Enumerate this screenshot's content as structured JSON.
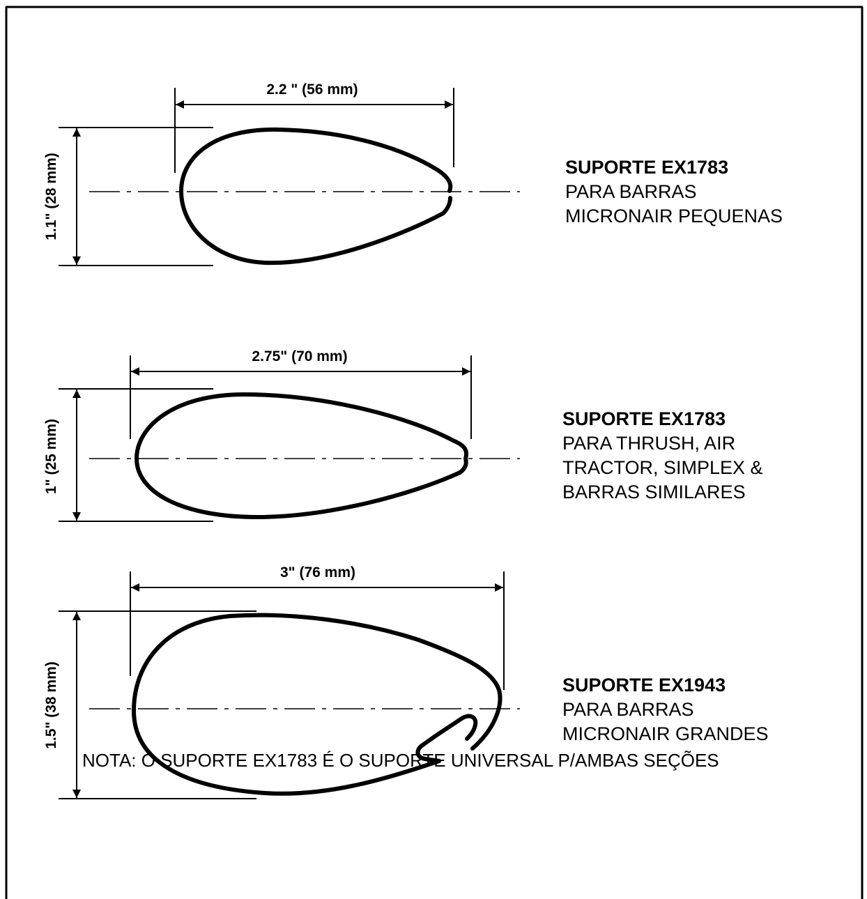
{
  "sections": [
    {
      "width_label": "2.2 \" (56 mm)",
      "height_label": "1.1\" (28 mm)",
      "title": "SUPORTE EX1783",
      "lines": [
        "PARA BARRAS",
        "MICRONAIR PEQUENAS"
      ]
    },
    {
      "width_label": "2.75\" (70 mm)",
      "height_label": "1\" (25 mm)",
      "title": "SUPORTE EX1783",
      "lines": [
        "PARA THRUSH, AIR",
        "TRACTOR,  SIMPLEX  &",
        "BARRAS SIMILARES"
      ]
    },
    {
      "width_label": "3\" (76 mm)",
      "height_label": "1.5\" (38 mm)",
      "title": "SUPORTE EX1943",
      "lines": [
        "PARA BARRAS",
        "MICRONAIR GRANDES"
      ]
    }
  ],
  "note": "NOTA:  O SUPORTE EX1783 É O SUPORTE UNIVERSAL P/AMBAS SEÇÕES"
}
